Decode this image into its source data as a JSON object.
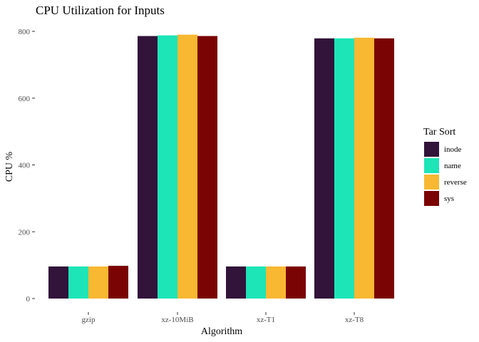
{
  "chart_data": {
    "type": "bar",
    "title": "CPU Utilization for Inputs",
    "xlabel": "Algorithm",
    "ylabel": "CPU %",
    "categories": [
      "gzip",
      "xz-10MiB",
      "xz-T1",
      "xz-T8"
    ],
    "ylim": [
      0,
      800
    ],
    "yticks": [
      0,
      200,
      400,
      600,
      800
    ],
    "grid": false,
    "legend": {
      "title": "Tar Sort",
      "placement": "right"
    },
    "series": [
      {
        "name": "inode",
        "color": "#32133a",
        "values": [
          96,
          786,
          96,
          779
        ]
      },
      {
        "name": "name",
        "color": "#1de5b8",
        "values": [
          96,
          788,
          96,
          779
        ]
      },
      {
        "name": "reverse",
        "color": "#f8b832",
        "values": [
          96,
          790,
          96,
          781
        ]
      },
      {
        "name": "sys",
        "color": "#7a0403",
        "values": [
          98,
          786,
          96,
          779
        ]
      }
    ]
  }
}
